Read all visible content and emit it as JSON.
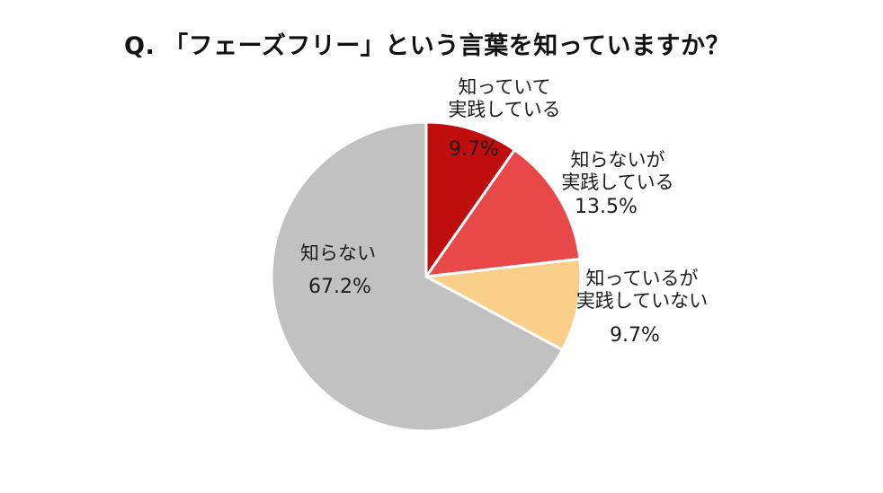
{
  "title": "Q. 「フェーズフリー」という言葉を知っていますか？",
  "chart_data": {
    "type": "pie",
    "title": "Q. 「フェーズフリー」という言葉を知っていますか？",
    "start_angle_deg": 0,
    "direction": "clockwise",
    "legend": "none",
    "stroke_color": "#ffffff",
    "background_color": "#ffffff",
    "segments": [
      {
        "label": "知っていて実践している",
        "label_lines": [
          "知っていて",
          "実践している"
        ],
        "value": 9.7,
        "pct_label": "9.7%",
        "color": "#c00d0d",
        "label_placement": "outside-top, percent inside slice"
      },
      {
        "label": "知らないが実践している",
        "label_lines": [
          "知らないが",
          "実践している"
        ],
        "value": 13.5,
        "pct_label": "13.5%",
        "color": "#e94848",
        "label_placement": "outside-right"
      },
      {
        "label": "知っているが実践していない",
        "label_lines": [
          "知っているが",
          "実践していない"
        ],
        "value": 9.7,
        "pct_label": "9.7%",
        "color": "#f9cf8a",
        "label_placement": "outside-right"
      },
      {
        "label": "知らない",
        "label_lines": [
          "知らない"
        ],
        "value": 67.2,
        "pct_label": "67.2%",
        "color": "#c1c1c1",
        "label_placement": "inside-left"
      }
    ]
  }
}
